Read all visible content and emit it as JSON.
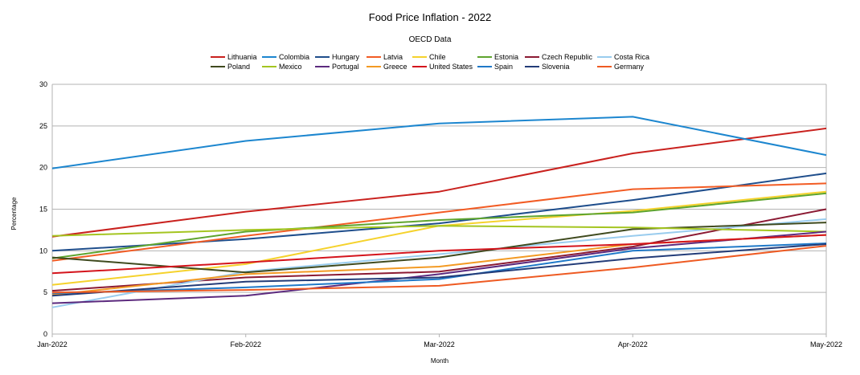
{
  "chart_data": {
    "type": "line",
    "title": "Food Price Inflation - 2022",
    "subtitle": "OECD Data",
    "xlabel": "Month",
    "ylabel": "Percentage",
    "ylim": [
      0,
      30
    ],
    "yticks": [
      0,
      5,
      10,
      15,
      20,
      25,
      30
    ],
    "grid": true,
    "legend_position": "top",
    "categories": [
      "Jan-2022",
      "Feb-2022",
      "Mar-2022",
      "Apr-2022",
      "May-2022"
    ],
    "series": [
      {
        "name": "Lithuania",
        "color": "#c9211e",
        "values": [
          11.7,
          14.7,
          17.1,
          21.7,
          24.7
        ]
      },
      {
        "name": "Colombia",
        "color": "#1c86cf",
        "values": [
          19.9,
          23.2,
          25.3,
          26.1,
          21.5
        ]
      },
      {
        "name": "Hungary",
        "color": "#1f4e8c",
        "values": [
          10.0,
          11.4,
          13.3,
          16.1,
          19.3
        ]
      },
      {
        "name": "Latvia",
        "color": "#f25c24",
        "values": [
          8.8,
          11.8,
          14.6,
          17.4,
          18.1
        ]
      },
      {
        "name": "Chile",
        "color": "#f5d22c",
        "values": [
          5.9,
          8.4,
          13.0,
          14.8,
          17.1
        ]
      },
      {
        "name": "Estonia",
        "color": "#5ea42e",
        "values": [
          9.1,
          12.3,
          13.7,
          14.6,
          16.9
        ]
      },
      {
        "name": "Czech Republic",
        "color": "#8b1a33",
        "values": [
          5.2,
          6.8,
          7.5,
          10.5,
          15.0
        ]
      },
      {
        "name": "Costa Rica",
        "color": "#99ccee",
        "values": [
          3.2,
          7.5,
          9.6,
          11.8,
          13.8
        ]
      },
      {
        "name": "Poland",
        "color": "#3f4a1e",
        "values": [
          9.2,
          7.4,
          9.2,
          12.6,
          13.4
        ]
      },
      {
        "name": "Mexico",
        "color": "#a4c520",
        "values": [
          11.8,
          12.5,
          13.0,
          12.8,
          12.3
        ]
      },
      {
        "name": "Portugal",
        "color": "#5c2a7e",
        "values": [
          3.7,
          4.6,
          7.2,
          10.3,
          12.3
        ]
      },
      {
        "name": "Greece",
        "color": "#f39a23",
        "values": [
          4.7,
          7.2,
          8.1,
          10.8,
          11.9
        ]
      },
      {
        "name": "United States",
        "color": "#d4141c",
        "values": [
          7.3,
          8.6,
          10.0,
          10.8,
          11.9
        ]
      },
      {
        "name": "Spain",
        "color": "#1f79c8",
        "values": [
          4.9,
          5.6,
          6.6,
          10.0,
          10.9
        ]
      },
      {
        "name": "Slovenia",
        "color": "#233c78",
        "values": [
          4.6,
          6.3,
          6.8,
          9.1,
          10.8
        ]
      },
      {
        "name": "Germany",
        "color": "#ee5a22",
        "values": [
          5.0,
          5.3,
          5.8,
          8.0,
          10.6
        ]
      }
    ]
  }
}
